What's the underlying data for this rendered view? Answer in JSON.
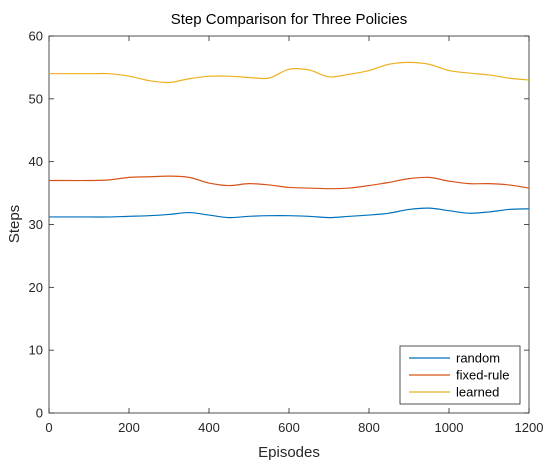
{
  "chart_data": {
    "type": "line",
    "title": "Step Comparison for Three Policies",
    "xlabel": "Episodes",
    "ylabel": "Steps",
    "xlim": [
      0,
      1200
    ],
    "ylim": [
      0,
      60
    ],
    "xticks": [
      0,
      200,
      400,
      600,
      800,
      1000,
      1200
    ],
    "yticks": [
      0,
      10,
      20,
      30,
      40,
      50,
      60
    ],
    "grid": false,
    "legend_position": "bottom-right",
    "x": [
      0,
      50,
      100,
      150,
      200,
      250,
      300,
      350,
      400,
      450,
      500,
      550,
      600,
      650,
      700,
      750,
      800,
      850,
      900,
      950,
      1000,
      1050,
      1100,
      1150,
      1200
    ],
    "series": [
      {
        "name": "random",
        "color": "#0072BD",
        "values": [
          31.2,
          31.2,
          31.2,
          31.2,
          31.3,
          31.4,
          31.6,
          31.9,
          31.5,
          31.1,
          31.3,
          31.4,
          31.4,
          31.3,
          31.1,
          31.3,
          31.5,
          31.8,
          32.4,
          32.6,
          32.2,
          31.8,
          32.0,
          32.4,
          32.5
        ]
      },
      {
        "name": "fixed-rule",
        "color": "#D95319",
        "values": [
          37.0,
          37.0,
          37.0,
          37.1,
          37.5,
          37.6,
          37.7,
          37.5,
          36.6,
          36.2,
          36.5,
          36.3,
          35.9,
          35.8,
          35.7,
          35.8,
          36.2,
          36.7,
          37.3,
          37.5,
          36.9,
          36.5,
          36.5,
          36.3,
          35.8
        ]
      },
      {
        "name": "learned",
        "color": "#EDB120",
        "values": [
          54.0,
          54.0,
          54.0,
          54.0,
          53.6,
          52.9,
          52.6,
          53.2,
          53.6,
          53.6,
          53.4,
          53.3,
          54.7,
          54.6,
          53.5,
          53.9,
          54.5,
          55.5,
          55.8,
          55.5,
          54.5,
          54.1,
          53.8,
          53.3,
          53.0
        ]
      }
    ]
  }
}
